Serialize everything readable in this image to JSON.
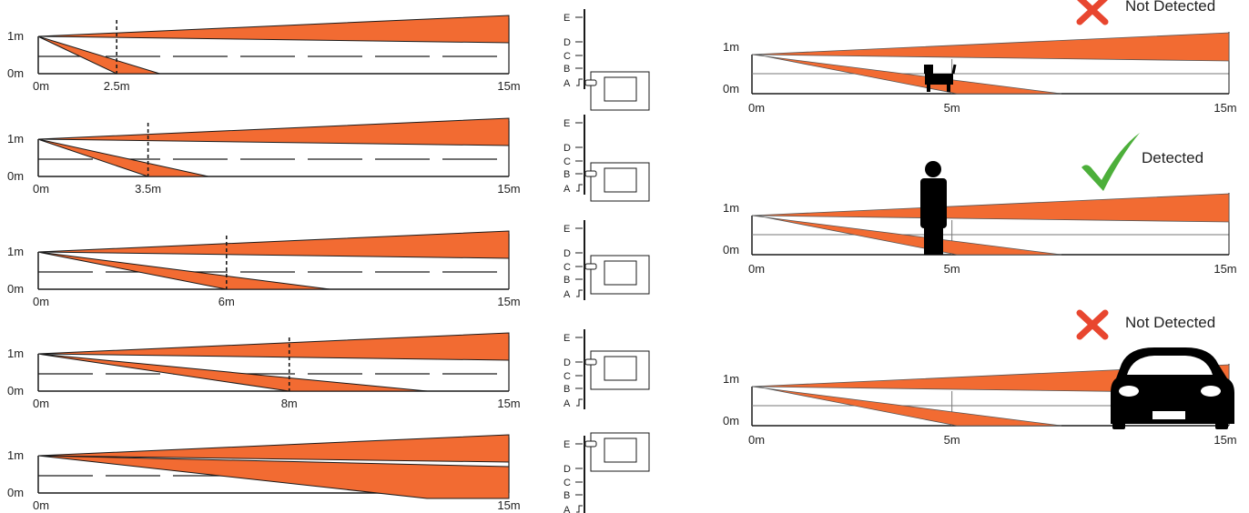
{
  "colors": {
    "beam": "#f26b32",
    "beam_stroke": "#1a1a1a",
    "line": "#1a1a1a",
    "check": "#4caf3a",
    "cross": "#e8462f",
    "silhouette": "#000000"
  },
  "beam_diagrams": [
    {
      "y_labels": [
        "1m",
        "0m"
      ],
      "x_labels": [
        "0m",
        "2.5m",
        "15m"
      ],
      "lower_beam_floor_m": 2.5,
      "setting": "A"
    },
    {
      "y_labels": [
        "1m",
        "0m"
      ],
      "x_labels": [
        "0m",
        "3.5m",
        "15m"
      ],
      "lower_beam_floor_m": 3.5,
      "setting": "B"
    },
    {
      "y_labels": [
        "1m",
        "0m"
      ],
      "x_labels": [
        "0m",
        "6m",
        "15m"
      ],
      "lower_beam_floor_m": 6,
      "setting": "C"
    },
    {
      "y_labels": [
        "1m",
        "0m"
      ],
      "x_labels": [
        "0m",
        "8m",
        "15m"
      ],
      "lower_beam_floor_m": 8,
      "setting": "D"
    },
    {
      "y_labels": [
        "1m",
        "0m"
      ],
      "x_labels": [
        "0m",
        "15m"
      ],
      "lower_beam_floor_m": 15,
      "setting": "E"
    }
  ],
  "switch_positions": [
    "E",
    "D",
    "C",
    "B",
    "A"
  ],
  "detection_examples": [
    {
      "object": "dog-icon",
      "status": "Not Detected",
      "detected": false,
      "y_labels": [
        "1m",
        "0m"
      ],
      "x_labels": [
        "0m",
        "5m",
        "15m"
      ]
    },
    {
      "object": "person-icon",
      "status": "Detected",
      "detected": true,
      "y_labels": [
        "1m",
        "0m"
      ],
      "x_labels": [
        "0m",
        "5m",
        "15m"
      ]
    },
    {
      "object": "car-icon",
      "status": "Not Detected",
      "detected": false,
      "y_labels": [
        "1m",
        "0m"
      ],
      "x_labels": [
        "0m",
        "5m",
        "15m"
      ]
    }
  ]
}
